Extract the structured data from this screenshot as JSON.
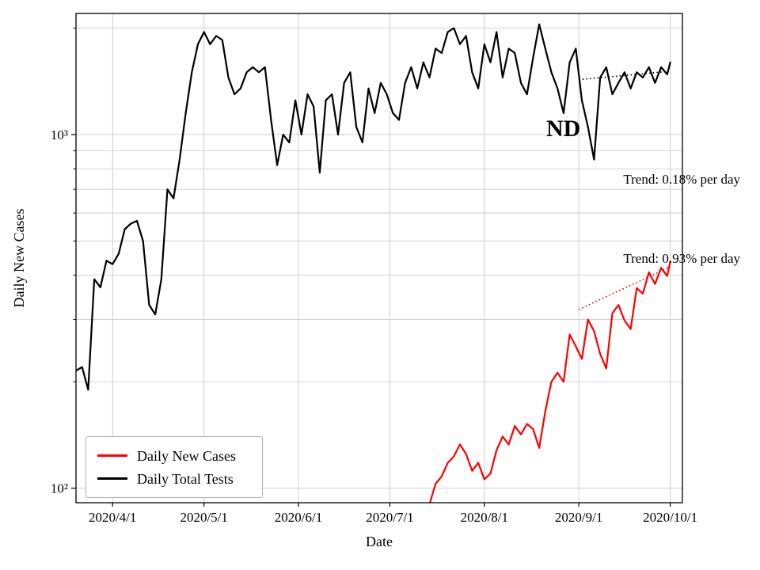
{
  "chart_data": {
    "type": "line",
    "title": "",
    "xlabel": "Date",
    "ylabel": "Daily New Cases",
    "yscale": "log",
    "grid": true,
    "legend_position": "lower left",
    "annotation": "ND",
    "trend_labels": [
      "Trend: 0.18% per day",
      "Trend: 0.93% per day"
    ],
    "x_unit": "days since 2020-03-22",
    "xlim": [
      -2,
      197
    ],
    "ylim": [
      91,
      2200
    ],
    "x_ticks": [
      {
        "day": 10,
        "label": "2020/4/1"
      },
      {
        "day": 40,
        "label": "2020/5/1"
      },
      {
        "day": 71,
        "label": "2020/6/1"
      },
      {
        "day": 101,
        "label": "2020/7/1"
      },
      {
        "day": 132,
        "label": "2020/8/1"
      },
      {
        "day": 163,
        "label": "2020/9/1"
      },
      {
        "day": 193,
        "label": "2020/10/1"
      }
    ],
    "y_ticks": [
      {
        "value": 100,
        "label": "10²"
      },
      {
        "value": 1000,
        "label": "10³"
      }
    ],
    "y_minor_gridlines": [
      200,
      300,
      400,
      500,
      600,
      700,
      800,
      900,
      2000
    ],
    "series": [
      {
        "name": "Daily New Cases",
        "color": "#ff0000",
        "x": [
          114,
          116,
          118,
          120,
          122,
          124,
          126,
          128,
          130,
          132,
          134,
          136,
          138,
          140,
          142,
          144,
          146,
          148,
          150,
          152,
          154,
          156,
          158,
          160,
          162,
          164,
          166,
          168,
          170,
          172,
          174,
          176,
          178,
          180,
          182,
          184,
          186,
          188,
          190,
          192,
          193
        ],
        "values": [
          90,
          103,
          108,
          118,
          123,
          133,
          125,
          112,
          118,
          106,
          110,
          128,
          140,
          133,
          150,
          142,
          152,
          147,
          130,
          165,
          200,
          212,
          200,
          272,
          252,
          232,
          300,
          278,
          240,
          218,
          312,
          330,
          298,
          282,
          368,
          355,
          408,
          378,
          420,
          398,
          438
        ]
      },
      {
        "name": "Daily Total Tests",
        "color": "#000000",
        "x": [
          -2,
          0,
          2,
          4,
          6,
          8,
          10,
          12,
          14,
          16,
          18,
          20,
          22,
          24,
          26,
          28,
          30,
          32,
          34,
          36,
          38,
          40,
          42,
          44,
          46,
          48,
          50,
          52,
          54,
          56,
          58,
          60,
          62,
          64,
          66,
          68,
          70,
          72,
          74,
          76,
          78,
          80,
          82,
          84,
          86,
          88,
          90,
          92,
          94,
          96,
          98,
          100,
          102,
          104,
          106,
          108,
          110,
          112,
          114,
          116,
          118,
          120,
          122,
          124,
          126,
          128,
          130,
          132,
          134,
          136,
          138,
          140,
          142,
          144,
          146,
          148,
          150,
          152,
          154,
          156,
          158,
          160,
          162,
          164,
          166,
          168,
          170,
          172,
          174,
          176,
          178,
          180,
          182,
          184,
          186,
          188,
          190,
          192,
          193
        ],
        "values": [
          215,
          220,
          190,
          390,
          370,
          440,
          430,
          460,
          540,
          560,
          570,
          500,
          330,
          310,
          390,
          700,
          660,
          850,
          1150,
          1500,
          1800,
          1950,
          1800,
          1900,
          1850,
          1450,
          1300,
          1350,
          1500,
          1550,
          1500,
          1550,
          1100,
          820,
          1000,
          950,
          1250,
          1000,
          1300,
          1200,
          780,
          1250,
          1300,
          1000,
          1400,
          1500,
          1050,
          950,
          1350,
          1150,
          1400,
          1300,
          1150,
          1100,
          1400,
          1550,
          1350,
          1600,
          1450,
          1750,
          1700,
          1950,
          2000,
          1800,
          1900,
          1500,
          1350,
          1800,
          1600,
          1950,
          1450,
          1750,
          1700,
          1400,
          1300,
          1650,
          2050,
          1750,
          1500,
          1350,
          1150,
          1600,
          1750,
          1250,
          1050,
          850,
          1450,
          1550,
          1300,
          1400,
          1500,
          1350,
          1500,
          1450,
          1550,
          1400,
          1550,
          1480,
          1600
        ]
      }
    ],
    "trend_lines": [
      {
        "series": "Daily Total Tests",
        "rate_per_day_pct": 0.18,
        "color": "#000000",
        "x": [
          163,
          193
        ],
        "values": [
          1430,
          1510
        ]
      },
      {
        "series": "Daily New Cases",
        "rate_per_day_pct": 0.93,
        "color": "#ff0000",
        "x": [
          163,
          193
        ],
        "values": [
          320,
          423
        ]
      }
    ]
  }
}
